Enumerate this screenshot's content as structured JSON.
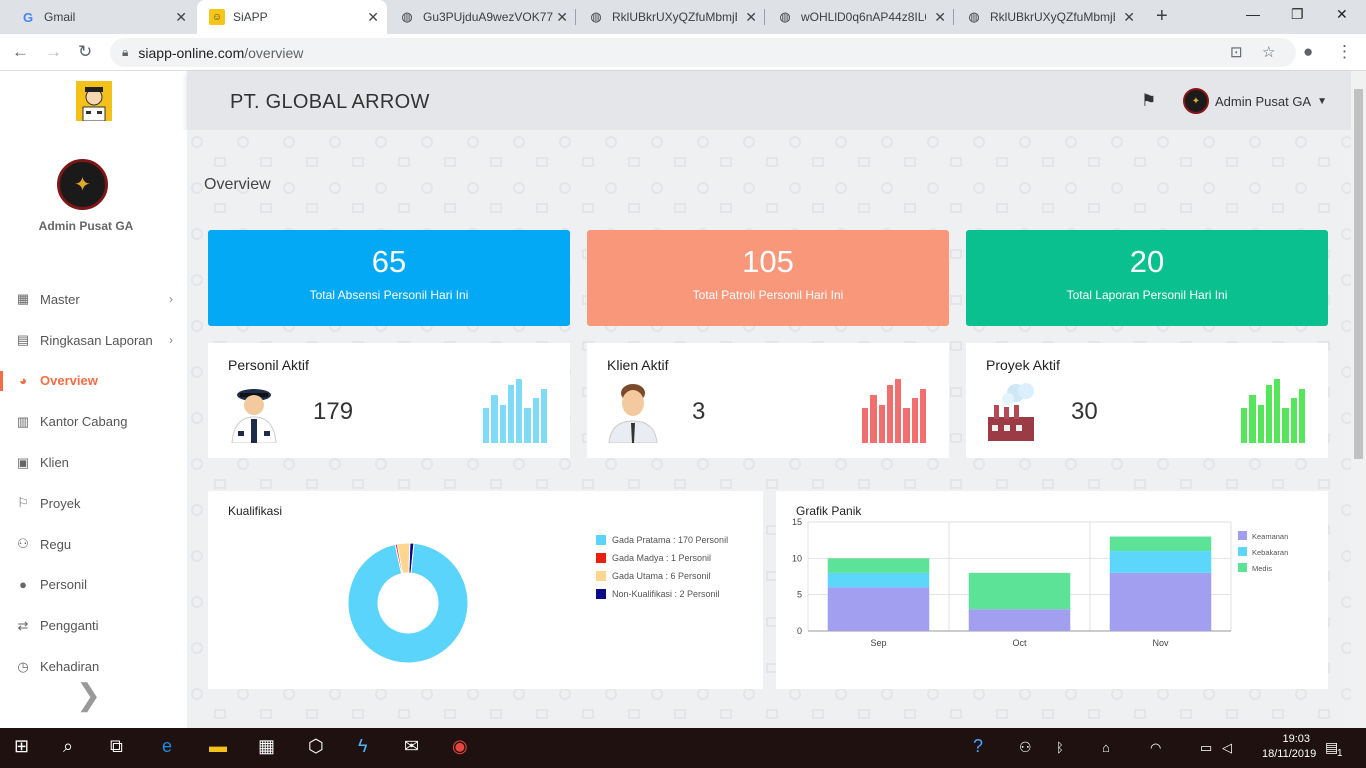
{
  "browser": {
    "tabs": [
      {
        "title": "Gmail"
      },
      {
        "title": "SiAPP"
      },
      {
        "title": "Gu3PUjduA9wezVOK77"
      },
      {
        "title": "RklUBkrUXyQZfuMbmjE"
      },
      {
        "title": "wOHLlD0q6nAP44z8IL6"
      },
      {
        "title": "RklUBkrUXyQZfuMbmjE"
      }
    ],
    "url_host": "siapp-online.com",
    "url_path": "/overview"
  },
  "header": {
    "company": "PT. GLOBAL ARROW",
    "user": "Admin Pusat GA"
  },
  "sidebar": {
    "user_name": "Admin Pusat GA",
    "items": [
      {
        "label": "Master",
        "icon": "grid-icon",
        "glyph": "▦",
        "chevron": true
      },
      {
        "label": "Ringkasan Laporan",
        "icon": "report-icon",
        "glyph": "▤",
        "chevron": true
      },
      {
        "label": "Overview",
        "icon": "dashboard-icon",
        "glyph": "◕",
        "chevron": false,
        "active": true
      },
      {
        "label": "Kantor Cabang",
        "icon": "building-icon",
        "glyph": "▥",
        "chevron": false
      },
      {
        "label": "Klien",
        "icon": "contact-icon",
        "glyph": "▣",
        "chevron": false
      },
      {
        "label": "Proyek",
        "icon": "flag-icon",
        "glyph": "⚐",
        "chevron": false
      },
      {
        "label": "Regu",
        "icon": "group-icon",
        "glyph": "⚇",
        "chevron": false
      },
      {
        "label": "Personil",
        "icon": "person-icon",
        "glyph": "●",
        "chevron": false
      },
      {
        "label": "Pengganti",
        "icon": "exchange-icon",
        "glyph": "⇄",
        "chevron": false
      },
      {
        "label": "Kehadiran",
        "icon": "clock-icon",
        "glyph": "◷",
        "chevron": false
      }
    ]
  },
  "page": {
    "title": "Overview"
  },
  "stats": [
    {
      "value": "65",
      "label": "Total Absensi Personil Hari Ini",
      "color": "#03a9f4"
    },
    {
      "value": "105",
      "label": "Total Patroli Personil Hari Ini",
      "color": "#f8977a"
    },
    {
      "value": "20",
      "label": "Total Laporan Personil Hari Ini",
      "color": "#0bc08f"
    }
  ],
  "cards": [
    {
      "title": "Personil Aktif",
      "count": "179",
      "bar_color": "#7fdbf5",
      "bars": [
        0.55,
        0.75,
        0.6,
        0.9,
        1.0,
        0.55,
        0.7,
        0.85
      ]
    },
    {
      "title": "Klien Aktif",
      "count": "3",
      "bar_color": "#f26f6f",
      "bars": [
        0.55,
        0.75,
        0.6,
        0.9,
        1.0,
        0.55,
        0.7,
        0.85
      ]
    },
    {
      "title": "Proyek Aktif",
      "count": "30",
      "bar_color": "#55e65c",
      "bars": [
        0.55,
        0.75,
        0.6,
        0.9,
        1.0,
        0.55,
        0.7,
        0.85
      ]
    }
  ],
  "charts": {
    "kualifikasi_title": "Kualifikasi",
    "panik_title": "Grafik Panik"
  },
  "chart_data": [
    {
      "type": "pie",
      "title": "Kualifikasi",
      "categories": [
        "Gada Pratama : 170 Personil",
        "Gada Madya : 1 Personil",
        "Gada Utama : 6 Personil",
        "Non-Kualifikasi : 2 Personil"
      ],
      "values": [
        170,
        1,
        6,
        2
      ],
      "colors": [
        "#5ad4fb",
        "#e8200f",
        "#ffd58f",
        "#0b0b8a"
      ],
      "donut": true
    },
    {
      "type": "bar",
      "stacked": true,
      "title": "Grafik Panik",
      "categories": [
        "Sep",
        "Oct",
        "Nov"
      ],
      "series": [
        {
          "name": "Keamanan",
          "values": [
            6,
            3,
            8
          ],
          "color": "#a29ff0"
        },
        {
          "name": "Kebakaran",
          "values": [
            2,
            0,
            3
          ],
          "color": "#5cd7fb"
        },
        {
          "name": "Medis",
          "values": [
            2,
            5,
            2
          ],
          "color": "#5de398"
        }
      ],
      "ylim": [
        0,
        15
      ],
      "yticks": [
        0,
        5,
        10,
        15
      ],
      "grid": true,
      "legend": "right"
    }
  ],
  "taskbar": {
    "time": "19:03",
    "date": "18/11/2019",
    "notifications": "1"
  }
}
